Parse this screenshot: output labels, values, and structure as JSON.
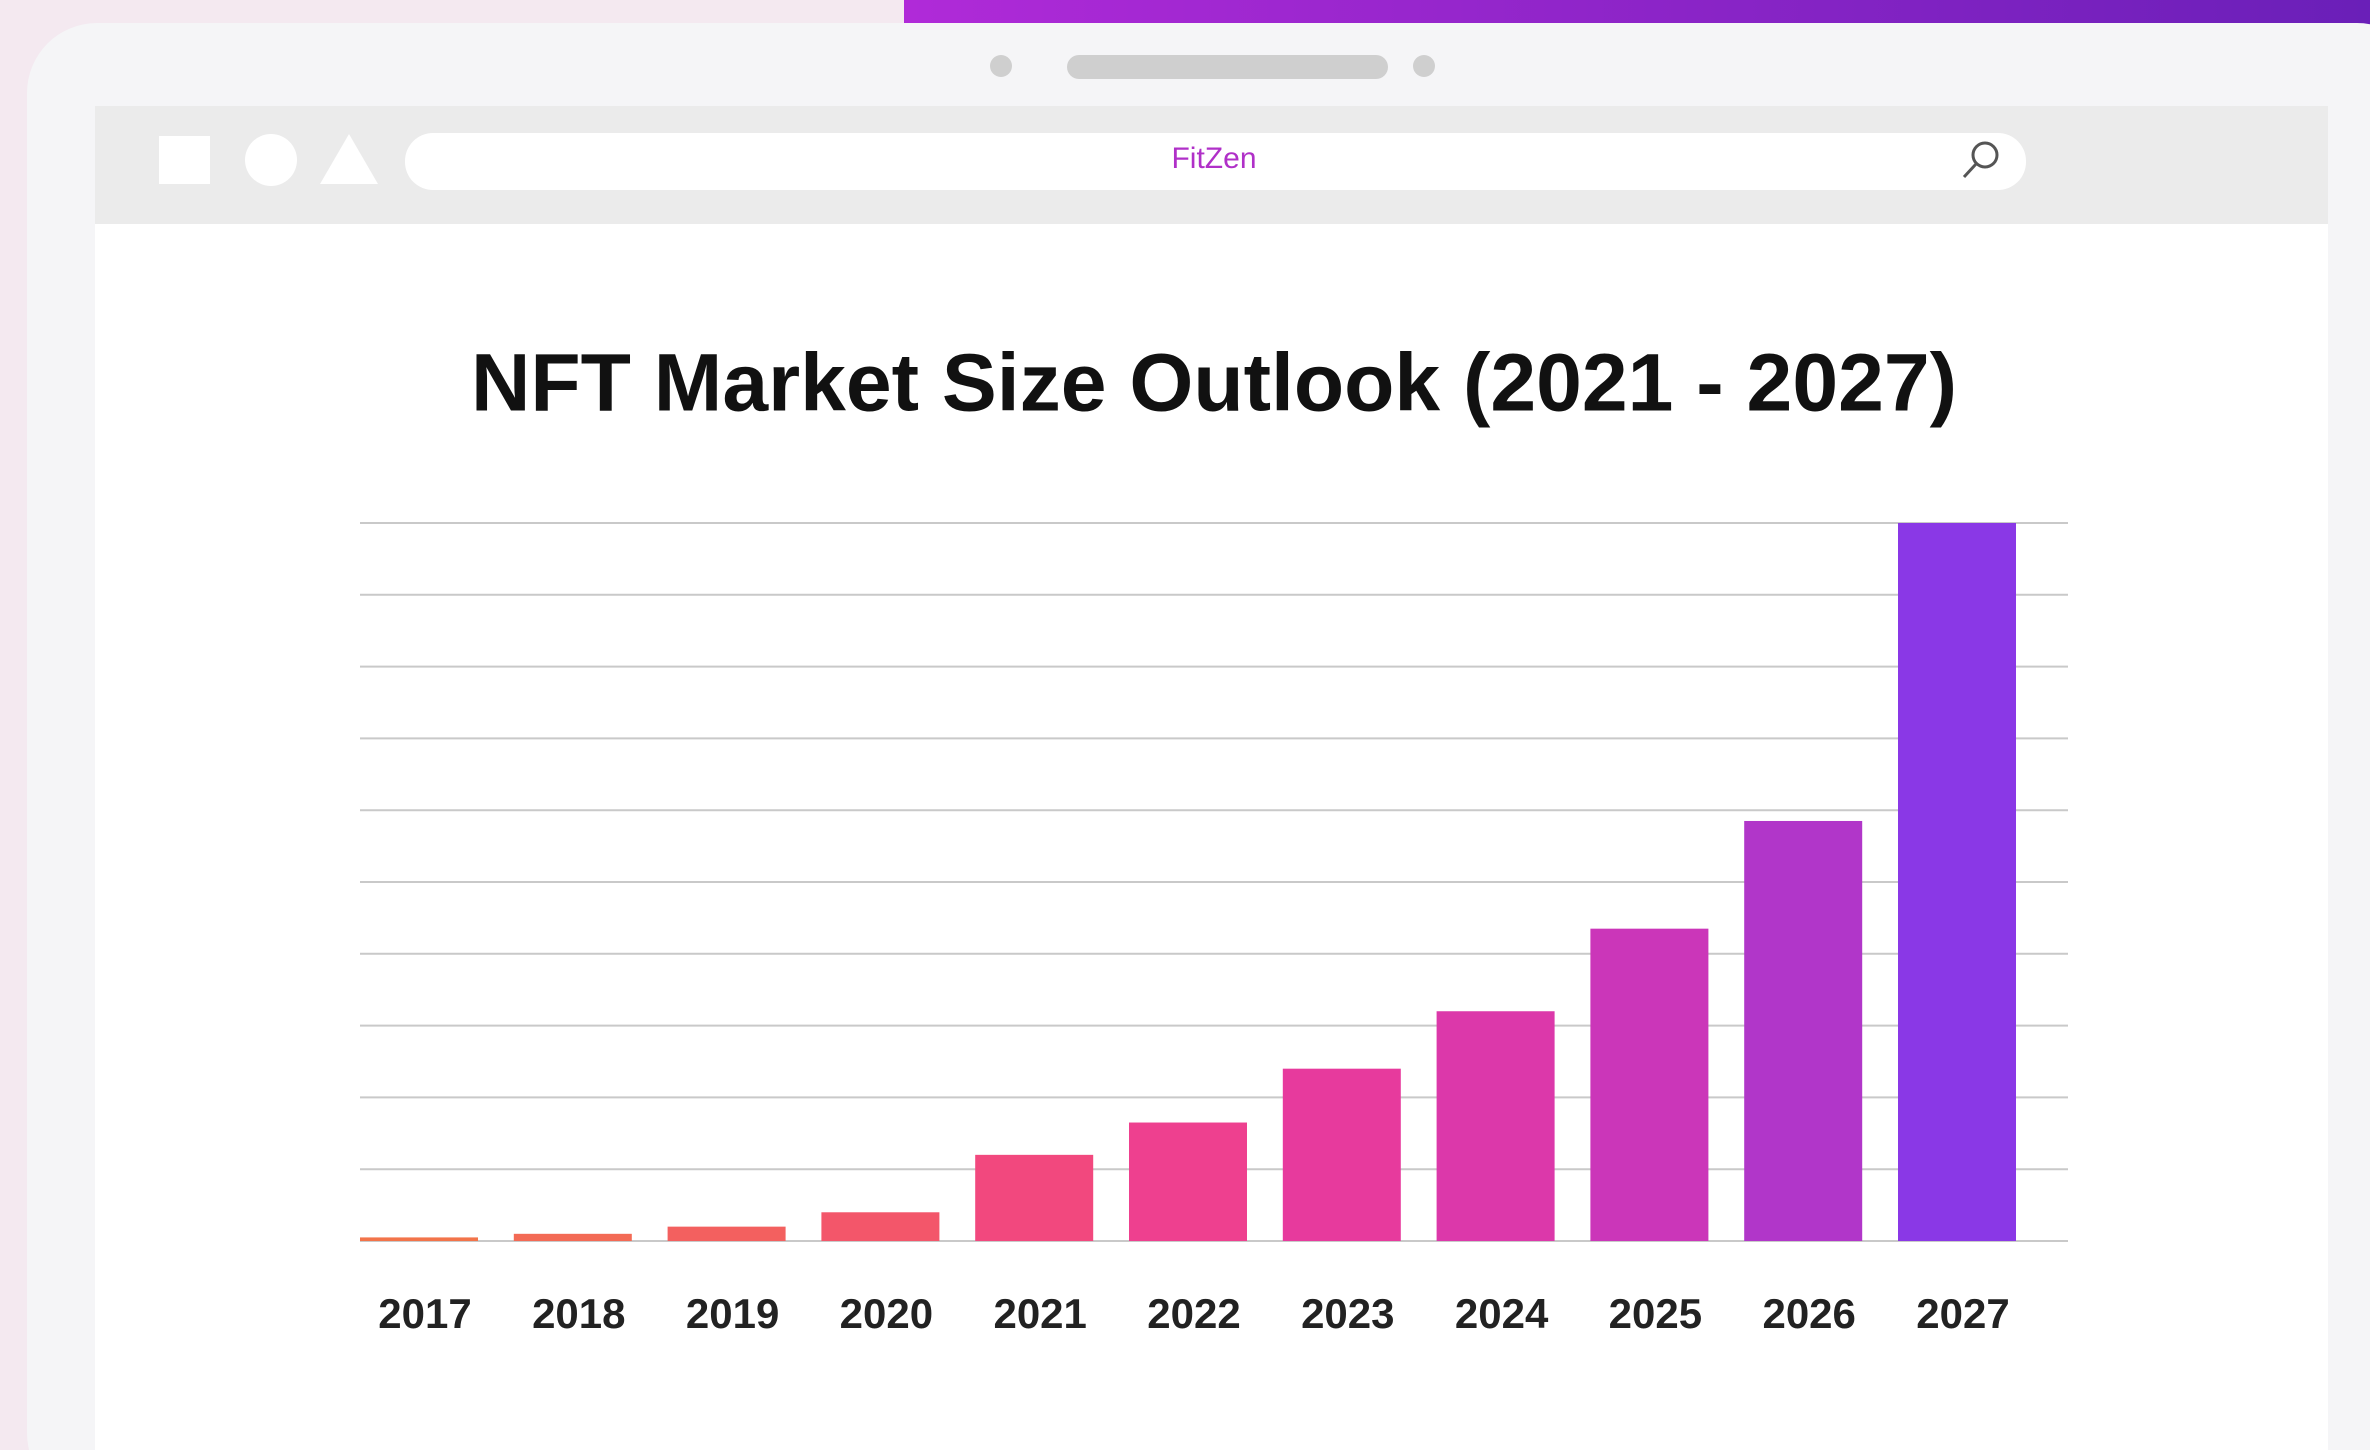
{
  "browser": {
    "address": "FitZen"
  },
  "chart_data": {
    "type": "bar",
    "title": "NFT Market Size Outlook (2021 - 2027)",
    "categories": [
      "2017",
      "2018",
      "2019",
      "2020",
      "2021",
      "2022",
      "2023",
      "2024",
      "2025",
      "2026",
      "2027"
    ],
    "values": [
      0.05,
      0.1,
      0.2,
      0.4,
      1.2,
      1.65,
      2.4,
      3.2,
      4.35,
      5.85,
      10
    ],
    "colors": [
      "#f2744a",
      "#f36a55",
      "#f3605f",
      "#f3566a",
      "#f2487e",
      "#ee408f",
      "#e73a9d",
      "#dc38aa",
      "#cb36b9",
      "#b136c9",
      "#8a38e6"
    ],
    "ylim": [
      0,
      10
    ],
    "yticks": [
      0,
      1,
      2,
      3,
      4,
      5,
      6,
      7,
      8,
      9,
      10
    ],
    "grid": true
  }
}
